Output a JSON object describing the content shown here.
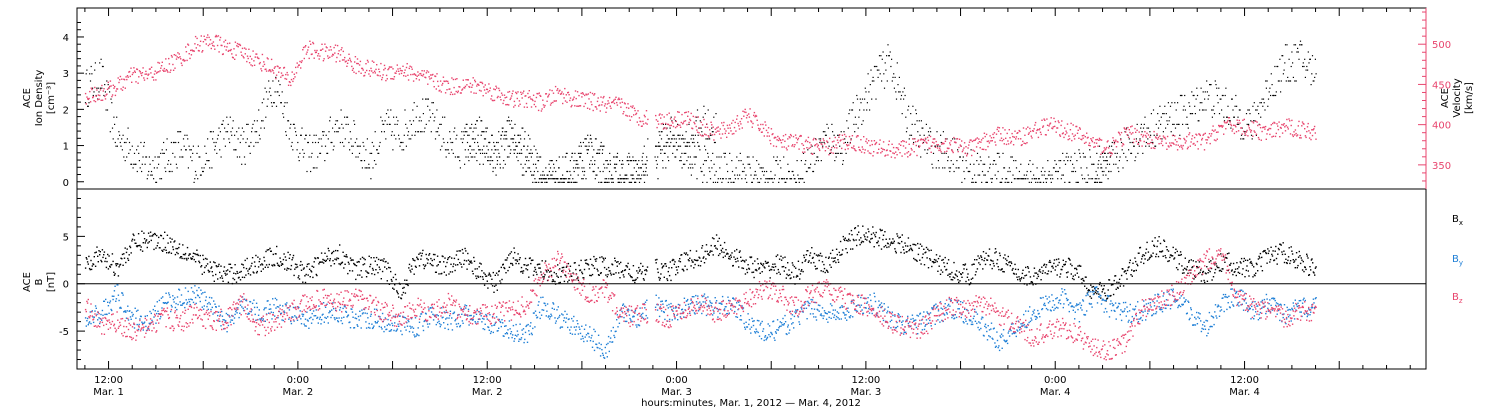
{
  "chart_data": [
    {
      "type": "scatter",
      "panel": "top",
      "ylabel_left": [
        "ACE",
        "Ion Density",
        "[cm⁻³]"
      ],
      "ylabel_right": [
        "ACE",
        "Velocity",
        "[km/s]"
      ],
      "left_ticks": [
        "0",
        "1",
        "2",
        "3",
        "4"
      ],
      "right_ticks": [
        "350",
        "400",
        "450",
        "500"
      ],
      "left_ylim": [
        -0.2,
        4.8
      ],
      "right_ylim": [
        320,
        545
      ],
      "colors": {
        "density": "#000000",
        "velocity": "#e8456e"
      },
      "series": [
        {
          "key": "density",
          "axis": "left",
          "x": [
            0,
            2,
            4,
            6,
            8,
            10,
            12,
            14,
            16,
            18,
            20,
            22,
            24,
            26,
            28,
            30,
            32,
            34,
            36,
            38,
            40,
            42,
            44,
            46,
            48,
            50,
            52,
            54,
            56,
            58,
            60,
            62,
            64,
            66,
            68,
            70,
            72,
            74,
            76,
            78,
            80
          ],
          "y": [
            2.6,
            2.9,
            1.2,
            0.9,
            0.4,
            0.6,
            1.0,
            0.5,
            0.9,
            1.4,
            1.0,
            1.6,
            2.8,
            1.5,
            0.8,
            0.9,
            1.6,
            1.2,
            0.6,
            1.5,
            1.3,
            1.9,
            1.7,
            1.1,
            0.9,
            1.3,
            0.7,
            1.4,
            0.8,
            0.1,
            0.1,
            0.3,
            0.8,
            0.2,
            0.2,
            0.2,
            0.9,
            1.3,
            1.0,
            1.6,
            1.5
          ]
        },
        {
          "key": "density_b",
          "axis": "left",
          "x": [
            48,
            50,
            52,
            54,
            56,
            58,
            60,
            62,
            64,
            66,
            68,
            70,
            72,
            74,
            76,
            78,
            80,
            82,
            84,
            86,
            88,
            90,
            92,
            94,
            96,
            98,
            100,
            102,
            104,
            106,
            108,
            110,
            112,
            114,
            116,
            118,
            120,
            122,
            124,
            126,
            128,
            130
          ],
          "y": [
            1.3,
            1.0,
            0.7,
            1.1,
            0.6,
            0.2,
            0.1,
            0.4,
            0.9,
            0.4,
            0.3,
            0.2,
            0.5,
            1.0,
            0.8,
            0.5,
            0.2,
            0.4,
            0.3,
            0.1,
            0.2,
            0.0,
            0.6,
            1.2,
            1.0,
            2.0,
            2.8,
            3.4,
            1.9,
            1.2,
            0.9,
            0.7,
            0.5,
            0.2,
            0.3,
            0.1,
            0.1,
            0.2,
            0.3,
            0.4,
            0.3,
            0.2
          ]
        },
        {
          "key": "density_c",
          "axis": "left",
          "x": [
            128,
            130,
            132,
            134,
            136,
            138,
            140,
            142,
            144,
            146,
            148,
            150,
            152,
            154,
            156
          ],
          "y": [
            0.4,
            0.5,
            1.0,
            1.3,
            1.6,
            1.8,
            2.0,
            2.4,
            2.2,
            1.8,
            1.6,
            2.6,
            3.2,
            3.4,
            3.0
          ]
        },
        {
          "key": "velocity",
          "axis": "right",
          "x": [
            0,
            2,
            4,
            6,
            8,
            10,
            12,
            14,
            16,
            18,
            20,
            22,
            24,
            26,
            28,
            30,
            32,
            34,
            36,
            38,
            40,
            42,
            44,
            46,
            48,
            50,
            52,
            54,
            56,
            58,
            60,
            62,
            64,
            66,
            68,
            70,
            72,
            74,
            76,
            78,
            80,
            82,
            84,
            86,
            88,
            90,
            92,
            94,
            96,
            98,
            100,
            102,
            104,
            106,
            108,
            110,
            112,
            114,
            116,
            118,
            120,
            122,
            124,
            126,
            128,
            130,
            132,
            134,
            136,
            138,
            140,
            142,
            144,
            146,
            148,
            150,
            152,
            154,
            156
          ],
          "y": [
            437,
            440,
            448,
            462,
            462,
            472,
            483,
            500,
            505,
            495,
            490,
            480,
            470,
            455,
            495,
            490,
            490,
            475,
            470,
            465,
            470,
            462,
            455,
            448,
            450,
            448,
            440,
            432,
            433,
            428,
            440,
            432,
            430,
            425,
            424,
            410,
            408,
            405,
            410,
            398,
            390,
            398,
            412,
            395,
            378,
            378,
            375,
            372,
            380,
            378,
            372,
            370,
            370,
            375,
            378,
            376,
            370,
            380,
            388,
            383,
            392,
            400,
            395,
            388,
            376,
            372,
            390,
            385,
            380,
            376,
            380,
            380,
            398,
            400,
            395,
            390,
            398,
            395,
            392
          ]
        }
      ]
    },
    {
      "type": "scatter",
      "panel": "bottom",
      "ylabel": [
        "ACE",
        "B",
        "[nT]"
      ],
      "ylabel_right_legend": [
        {
          "name": "Bx",
          "base": "B",
          "sub": "x",
          "color": "#000000"
        },
        {
          "name": "By",
          "base": "B",
          "sub": "y",
          "color": "#1f7fd6"
        },
        {
          "name": "Bz",
          "base": "B",
          "sub": "z",
          "color": "#e8456e"
        }
      ],
      "left_ticks": [
        "-5",
        "0",
        "5"
      ],
      "ylim": [
        -9,
        10
      ],
      "zero_line": true,
      "series": [
        {
          "name": "Bx",
          "color": "#000000",
          "x": [
            0,
            2,
            4,
            6,
            8,
            10,
            12,
            14,
            16,
            18,
            20,
            22,
            24,
            26,
            28,
            30,
            32,
            34,
            36,
            38,
            40,
            42,
            44,
            46,
            48,
            50,
            52,
            54,
            56,
            58,
            60,
            62,
            64,
            66,
            68,
            70,
            72,
            74,
            76,
            78,
            80,
            82,
            84,
            86,
            88,
            90,
            92,
            94,
            96,
            98,
            100,
            102,
            104,
            106,
            108,
            110,
            112,
            114,
            116,
            118,
            120,
            122,
            124,
            126,
            128,
            130,
            132,
            134,
            136,
            138,
            140,
            142,
            144,
            146,
            148,
            150,
            152,
            154,
            156
          ],
          "y": [
            2.5,
            3.0,
            1.8,
            4.2,
            4.8,
            4.5,
            3.8,
            2.6,
            1.5,
            1.0,
            1.5,
            2.3,
            3.0,
            2.2,
            1.0,
            2.5,
            3.4,
            1.5,
            2.0,
            1.6,
            -0.8,
            2.8,
            2.4,
            1.8,
            3.0,
            1.2,
            0.0,
            3.2,
            1.8,
            1.5,
            1.0,
            1.2,
            2.0,
            1.8,
            1.6,
            1.0,
            1.6,
            1.4,
            2.4,
            3.0,
            4.2,
            3.0,
            2.0,
            1.5,
            2.2,
            1.0,
            3.0,
            1.8,
            4.0,
            5.2,
            5.0,
            4.6,
            4.0,
            3.2,
            2.2,
            1.4,
            1.0,
            2.8,
            2.6,
            1.2,
            0.8,
            1.5,
            2.0,
            1.0,
            -1.0,
            -0.5,
            1.2,
            3.2,
            4.0,
            2.8,
            1.8,
            1.0,
            2.4,
            2.0,
            1.5,
            3.0,
            3.4,
            2.4,
            1.6
          ]
        },
        {
          "name": "By",
          "color": "#1f7fd6",
          "x": [
            0,
            2,
            4,
            6,
            8,
            10,
            12,
            14,
            16,
            18,
            20,
            22,
            24,
            26,
            28,
            30,
            32,
            34,
            36,
            38,
            40,
            42,
            44,
            46,
            48,
            50,
            52,
            54,
            56,
            58,
            60,
            62,
            64,
            66,
            68,
            70,
            72,
            74,
            76,
            78,
            80,
            82,
            84,
            86,
            88,
            90,
            92,
            94,
            96,
            98,
            100,
            102,
            104,
            106,
            108,
            110,
            112,
            114,
            116,
            118,
            120,
            122,
            124,
            126,
            128,
            130,
            132,
            134,
            136,
            138,
            140,
            142,
            144,
            146,
            148,
            150,
            152,
            154,
            156
          ],
          "y": [
            -4.0,
            -3.0,
            -1.0,
            -3.5,
            -4.0,
            -2.0,
            -1.5,
            -1.0,
            -2.5,
            -4.0,
            -2.0,
            -3.0,
            -2.5,
            -3.0,
            -4.0,
            -3.0,
            -3.0,
            -3.6,
            -3.5,
            -4.0,
            -4.2,
            -4.5,
            -3.0,
            -4.0,
            -3.2,
            -3.8,
            -4.5,
            -5.0,
            -5.2,
            -2.0,
            -3.5,
            -4.5,
            -5.5,
            -7.0,
            -3.0,
            -3.5,
            -2.0,
            -3.0,
            -2.4,
            -2.0,
            -2.5,
            -2.0,
            -4.0,
            -5.0,
            -4.8,
            -3.5,
            -2.5,
            -3.0,
            -3.2,
            -2.0,
            -2.0,
            -3.5,
            -4.5,
            -4.0,
            -3.0,
            -2.5,
            -3.2,
            -4.6,
            -6.0,
            -4.5,
            -3.0,
            -2.0,
            -1.5,
            -3.0,
            -1.0,
            -2.5,
            -3.0,
            -2.8,
            -2.0,
            -1.5,
            -3.0,
            -4.5,
            -2.0,
            -1.0,
            -3.0,
            -2.0,
            -3.2,
            -2.5,
            -2.2
          ]
        },
        {
          "name": "Bz",
          "color": "#e8456e",
          "x": [
            0,
            2,
            4,
            6,
            8,
            10,
            12,
            14,
            16,
            18,
            20,
            22,
            24,
            26,
            28,
            30,
            32,
            34,
            36,
            38,
            40,
            42,
            44,
            46,
            48,
            50,
            52,
            54,
            56,
            58,
            60,
            62,
            64,
            66,
            68,
            70,
            72,
            74,
            76,
            78,
            80,
            82,
            84,
            86,
            88,
            90,
            92,
            94,
            96,
            98,
            100,
            102,
            104,
            106,
            108,
            110,
            112,
            114,
            116,
            118,
            120,
            122,
            124,
            126,
            128,
            130,
            132,
            134,
            136,
            138,
            140,
            142,
            144,
            146,
            148,
            150,
            152,
            154,
            156
          ],
          "y": [
            -2.0,
            -4.5,
            -4.0,
            -5.0,
            -4.5,
            -3.5,
            -4.0,
            -3.0,
            -4.0,
            -3.5,
            -2.0,
            -4.5,
            -4.0,
            -3.0,
            -2.0,
            -1.5,
            -2.0,
            -1.5,
            -2.0,
            -3.0,
            -3.5,
            -2.5,
            -3.0,
            -2.0,
            -3.0,
            -3.2,
            -3.0,
            -2.8,
            -2.0,
            1.0,
            2.5,
            0.5,
            -1.0,
            -0.5,
            -3.5,
            -3.2,
            -3.0,
            -3.5,
            -2.5,
            -2.0,
            -3.0,
            -2.5,
            -1.5,
            -0.5,
            -1.0,
            -2.5,
            -1.0,
            -0.5,
            -1.5,
            -2.0,
            -3.0,
            -4.0,
            -4.5,
            -4.8,
            -3.0,
            -2.2,
            -2.5,
            -2.0,
            -3.5,
            -4.0,
            -5.5,
            -5.0,
            -4.5,
            -5.5,
            -6.8,
            -7.0,
            -6.0,
            -2.5,
            -2.0,
            -1.0,
            0.5,
            2.5,
            3.5,
            -1.5,
            -2.5,
            -3.0,
            -3.5,
            -2.8,
            -3.0
          ]
        }
      ]
    }
  ],
  "x_axis": {
    "range_hours": [
      -1,
      170
    ],
    "gap_hours": [
      71.3,
      72.2
    ],
    "ticks": [
      {
        "hour": 3,
        "time": "12:00",
        "date": "Mar. 1"
      },
      {
        "hour": 27,
        "time": "0:00",
        "date": "Mar. 2"
      },
      {
        "hour": 51,
        "time": "12:00",
        "date": "Mar. 2"
      },
      {
        "hour": 75,
        "time": "0:00",
        "date": "Mar. 3"
      },
      {
        "hour": 99,
        "time": "12:00",
        "date": "Mar. 3"
      },
      {
        "hour": 123,
        "time": "0:00",
        "date": "Mar. 4"
      },
      {
        "hour": 147,
        "time": "12:00",
        "date": "Mar. 4"
      }
    ],
    "title": "hours:minutes, Mar. 1, 2012 — Mar. 4, 2012"
  }
}
